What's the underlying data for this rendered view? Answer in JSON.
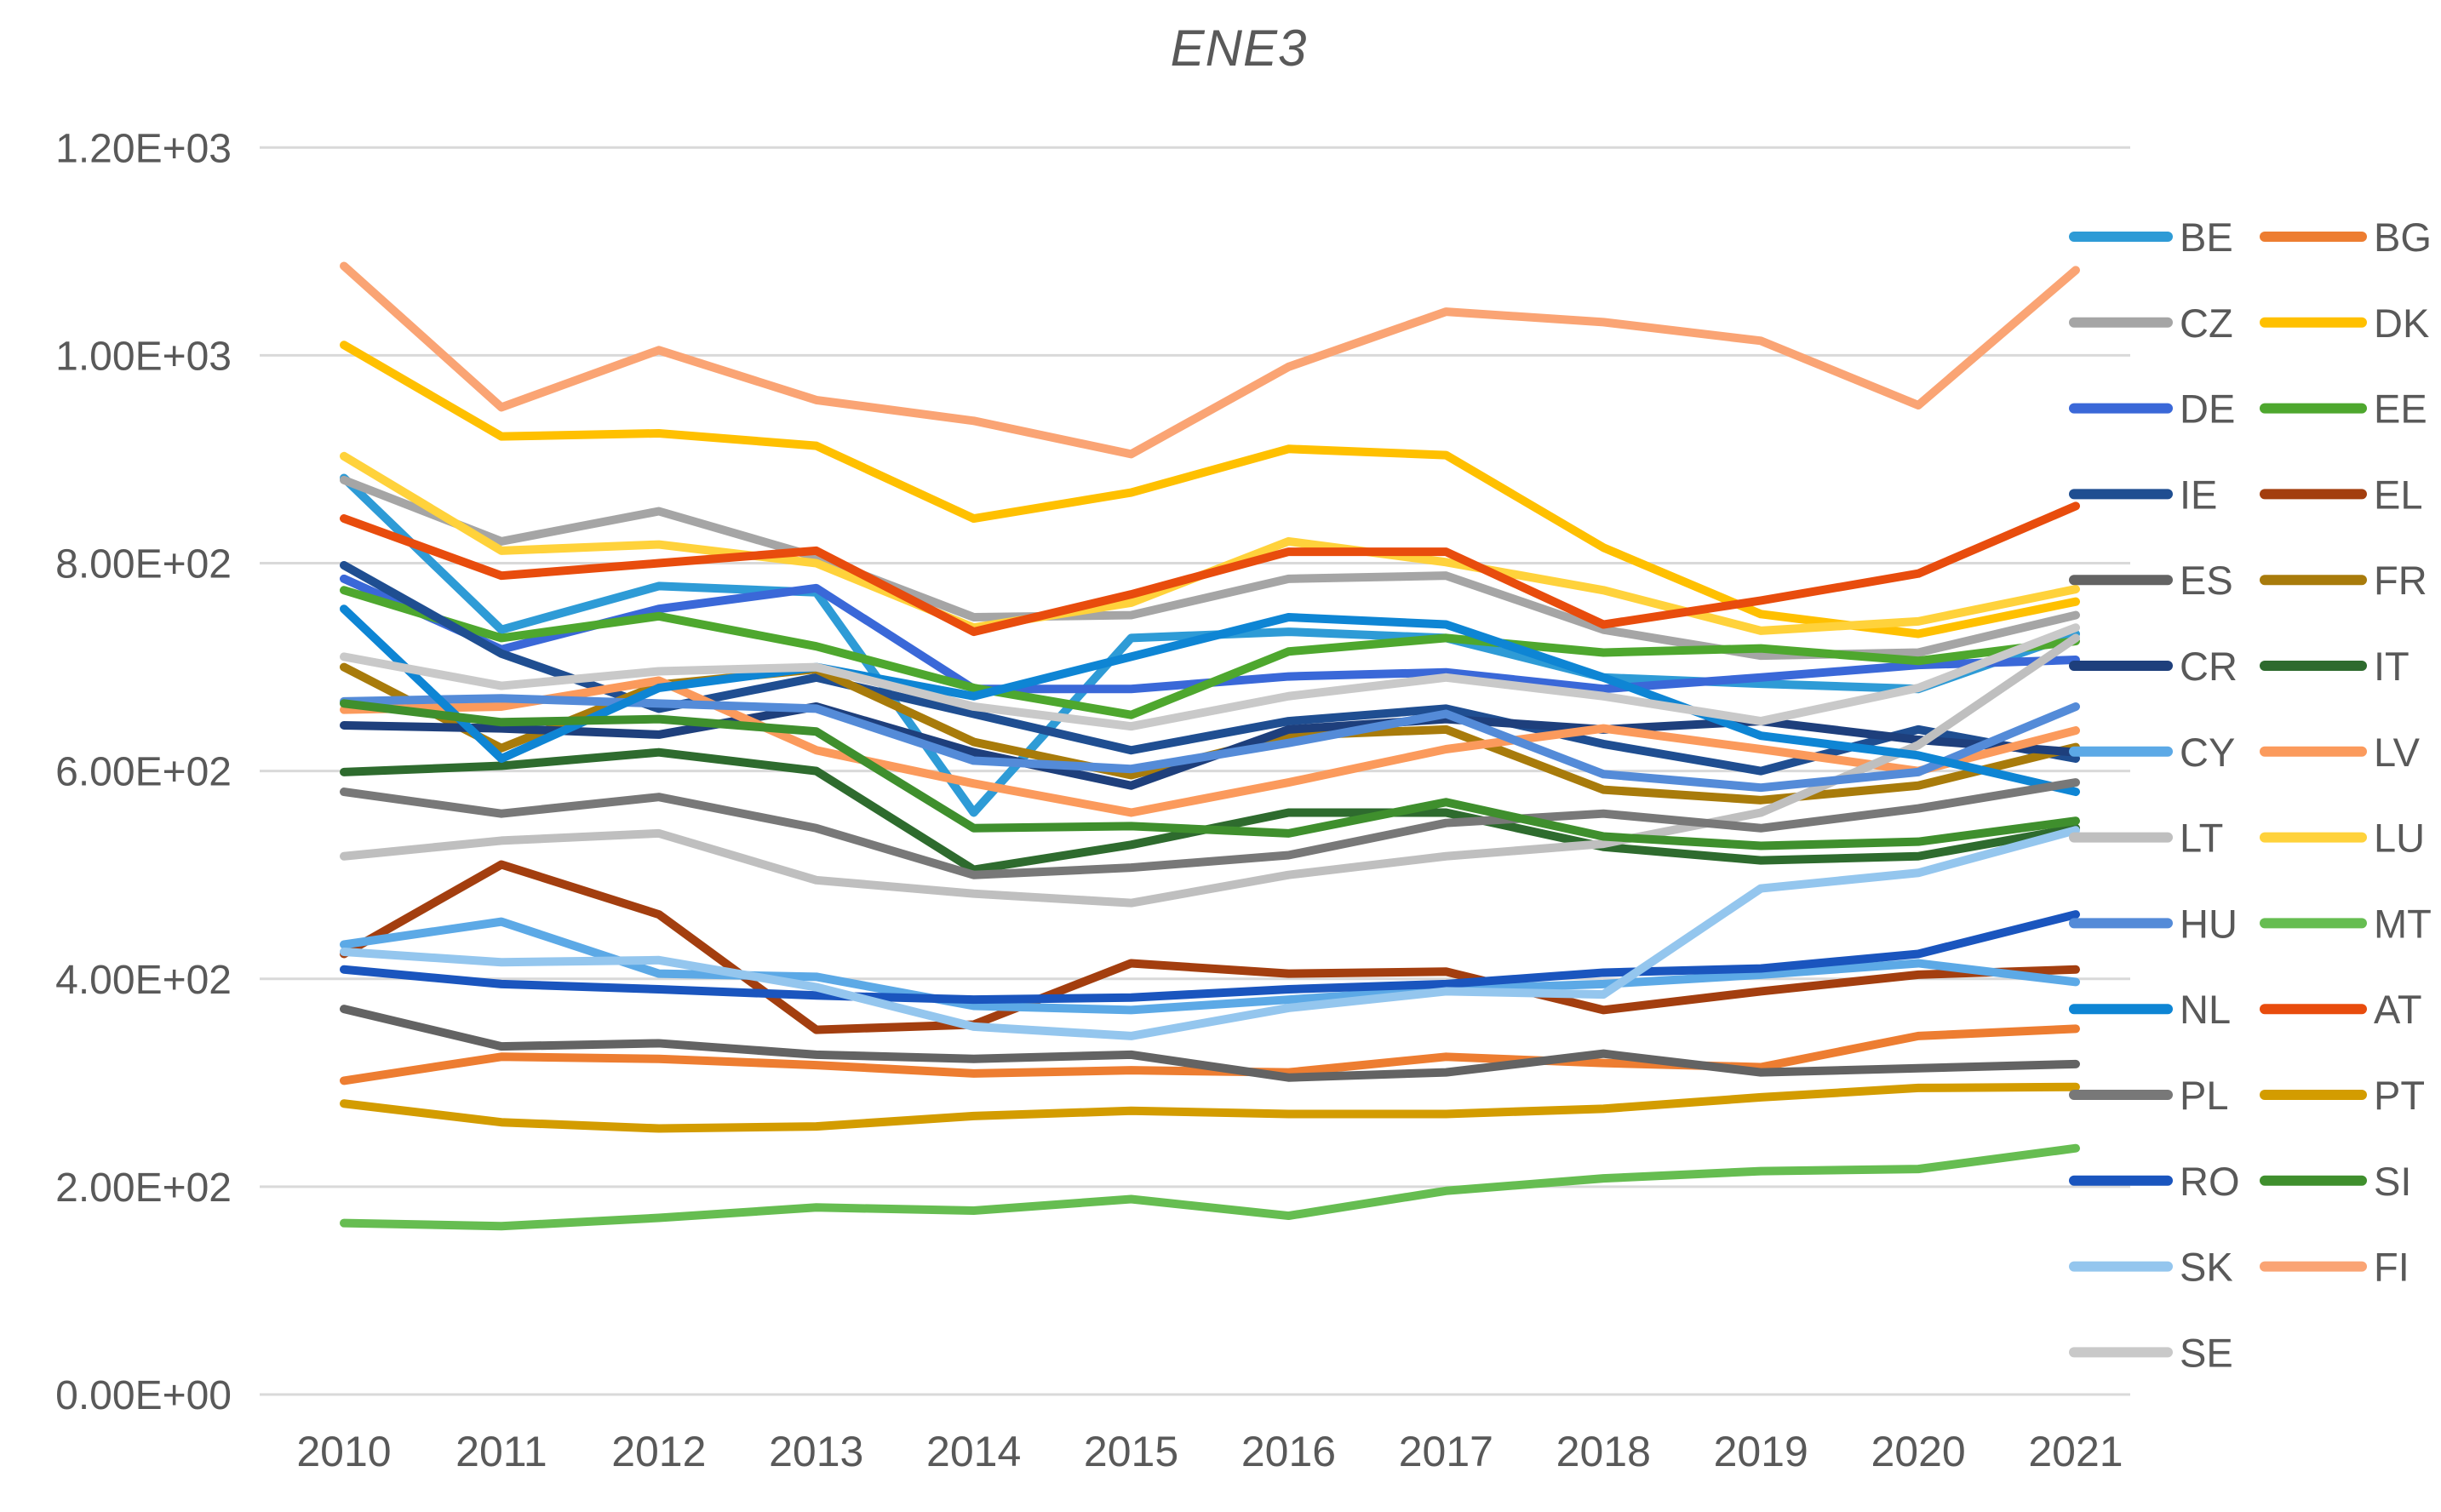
{
  "title": "ENE3",
  "colors": {
    "grid": "#D9D9D9",
    "axis_text": "#595959",
    "title_text": "#595959",
    "background": "#FFFFFF"
  },
  "chart_data": {
    "type": "line",
    "title": "ENE3",
    "xlabel": "",
    "ylabel": "",
    "x": [
      2010,
      2011,
      2012,
      2013,
      2014,
      2015,
      2016,
      2017,
      2018,
      2019,
      2020,
      2021
    ],
    "ylim": [
      0,
      1200
    ],
    "yticks": [
      0,
      200,
      400,
      600,
      800,
      1000,
      1200
    ],
    "ytick_labels": [
      "0.00E+00",
      "2.00E+02",
      "4.00E+02",
      "6.00E+02",
      "8.00E+02",
      "1.00E+03",
      "1.20E+03"
    ],
    "grid": true,
    "legend_position": "right-two-columns",
    "legend_rows": [
      [
        "BE",
        "BG"
      ],
      [
        "CZ",
        "DK"
      ],
      [
        "DE",
        "EE"
      ],
      [
        "IE",
        "EL"
      ],
      [
        "ES",
        "FR"
      ],
      [
        "CR",
        "IT"
      ],
      [
        "CY",
        "LV"
      ],
      [
        "LT",
        "LU"
      ],
      [
        "HU",
        "MT"
      ],
      [
        "NL",
        "AT"
      ],
      [
        "PL",
        "PT"
      ],
      [
        "RO",
        "SI"
      ],
      [
        "SK",
        "FI"
      ],
      [
        "SE"
      ]
    ],
    "series": [
      {
        "name": "BE",
        "color": "#2E9BD6",
        "values": [
          882,
          736,
          778,
          772,
          560,
          728,
          734,
          728,
          690,
          684,
          679,
          732
        ]
      },
      {
        "name": "BG",
        "color": "#ED7D31",
        "values": [
          302,
          325,
          323,
          317,
          309,
          312,
          310,
          325,
          319,
          315,
          345,
          352
        ]
      },
      {
        "name": "CZ",
        "color": "#A5A5A5",
        "values": [
          880,
          821,
          850,
          806,
          748,
          750,
          785,
          788,
          736,
          711,
          714,
          750
        ]
      },
      {
        "name": "DK",
        "color": "#FFC000",
        "values": [
          1010,
          922,
          925,
          913,
          843,
          868,
          910,
          904,
          815,
          751,
          732,
          763
        ]
      },
      {
        "name": "DE",
        "color": "#3A68D8",
        "values": [
          785,
          717,
          756,
          776,
          679,
          679,
          691,
          695,
          679,
          690,
          702,
          707
        ]
      },
      {
        "name": "EE",
        "color": "#4EA72E",
        "values": [
          774,
          728,
          749,
          720,
          680,
          654,
          715,
          728,
          714,
          718,
          706,
          725
        ]
      },
      {
        "name": "IE",
        "color": "#1F4E91",
        "values": [
          798,
          713,
          660,
          690,
          655,
          620,
          648,
          660,
          626,
          600,
          640,
          612
        ]
      },
      {
        "name": "EL",
        "color": "#A33E0F",
        "values": [
          424,
          510,
          462,
          351,
          356,
          415,
          405,
          407,
          370,
          388,
          404,
          409
        ]
      },
      {
        "name": "ES",
        "color": "#636363",
        "values": [
          371,
          335,
          338,
          327,
          323,
          327,
          305,
          310,
          328,
          310,
          314,
          318
        ]
      },
      {
        "name": "FR",
        "color": "#A87B0B",
        "values": [
          700,
          622,
          683,
          698,
          628,
          596,
          634,
          640,
          582,
          572,
          586,
          623
        ]
      },
      {
        "name": "CR",
        "color": "#1E3F7C",
        "values": [
          644,
          641,
          635,
          662,
          618,
          586,
          640,
          650,
          640,
          648,
          630,
          618
        ]
      },
      {
        "name": "IT",
        "color": "#2E6B2E",
        "values": [
          599,
          605,
          618,
          600,
          505,
          529,
          560,
          560,
          527,
          514,
          518,
          545
        ]
      },
      {
        "name": "CY",
        "color": "#5CA9E6",
        "values": [
          433,
          455,
          405,
          402,
          374,
          370,
          380,
          390,
          395,
          404,
          415,
          397
        ]
      },
      {
        "name": "LV",
        "color": "#FB9A5C",
        "values": [
          659,
          662,
          687,
          620,
          588,
          560,
          589,
          621,
          641,
          621,
          600,
          639
        ]
      },
      {
        "name": "LT",
        "color": "#BFBFBF",
        "values": [
          518,
          533,
          540,
          495,
          482,
          473,
          500,
          518,
          530,
          560,
          625,
          728
        ]
      },
      {
        "name": "LU",
        "color": "#FFD23B",
        "values": [
          903,
          812,
          818,
          800,
          738,
          762,
          821,
          801,
          774,
          735,
          744,
          775
        ]
      },
      {
        "name": "HU",
        "color": "#548BD8",
        "values": [
          667,
          670,
          665,
          660,
          610,
          602,
          627,
          655,
          597,
          584,
          599,
          662
        ]
      },
      {
        "name": "MT",
        "color": "#66BD51",
        "values": [
          165,
          162,
          170,
          180,
          177,
          188,
          172,
          196,
          208,
          215,
          217,
          237
        ]
      },
      {
        "name": "NL",
        "color": "#0E85D4",
        "values": [
          756,
          612,
          680,
          700,
          672,
          710,
          748,
          741,
          690,
          634,
          615,
          580
        ]
      },
      {
        "name": "AT",
        "color": "#E84C0D",
        "values": [
          843,
          788,
          800,
          812,
          734,
          770,
          811,
          811,
          741,
          764,
          790,
          855
        ]
      },
      {
        "name": "PL",
        "color": "#787878",
        "values": [
          580,
          559,
          575,
          545,
          500,
          507,
          519,
          550,
          559,
          545,
          564,
          589
        ]
      },
      {
        "name": "PT",
        "color": "#D39C00",
        "values": [
          280,
          262,
          256,
          258,
          268,
          273,
          270,
          270,
          275,
          286,
          295,
          296
        ]
      },
      {
        "name": "RO",
        "color": "#1A55BE",
        "values": [
          409,
          395,
          390,
          384,
          380,
          382,
          390,
          395,
          406,
          410,
          424,
          462
        ]
      },
      {
        "name": "SI",
        "color": "#3F8F2D",
        "values": [
          665,
          647,
          650,
          638,
          545,
          547,
          540,
          570,
          537,
          528,
          532,
          552
        ]
      },
      {
        "name": "SK",
        "color": "#94C6EE",
        "values": [
          426,
          416,
          418,
          392,
          354,
          345,
          372,
          388,
          385,
          487,
          502,
          543
        ]
      },
      {
        "name": "FI",
        "color": "#FAA474",
        "values": [
          1086,
          950,
          1005,
          957,
          937,
          905,
          989,
          1042,
          1032,
          1014,
          952,
          1082
        ]
      },
      {
        "name": "SE",
        "color": "#C9C9C9",
        "values": [
          710,
          682,
          696,
          700,
          662,
          643,
          672,
          690,
          672,
          648,
          680,
          738
        ]
      }
    ]
  }
}
